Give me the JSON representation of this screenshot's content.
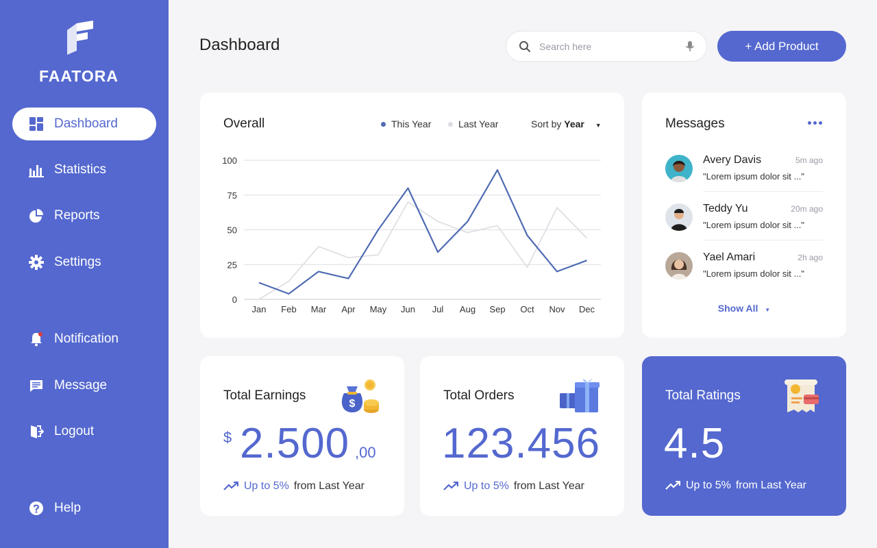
{
  "brand": {
    "name": "FAATORA"
  },
  "sidebar": {
    "items": [
      {
        "label": "Dashboard",
        "icon": "dashboard-icon",
        "active": true
      },
      {
        "label": "Statistics",
        "icon": "bar-chart-icon"
      },
      {
        "label": "Reports",
        "icon": "pie-chart-icon"
      },
      {
        "label": "Settings",
        "icon": "gear-icon"
      },
      {
        "label": "Notification",
        "icon": "bell-icon"
      },
      {
        "label": "Message",
        "icon": "chat-icon"
      },
      {
        "label": "Logout",
        "icon": "logout-icon"
      },
      {
        "label": "Help",
        "icon": "help-icon"
      }
    ]
  },
  "header": {
    "title": "Dashboard",
    "search_placeholder": "Search here",
    "add_label": "+ Add Product"
  },
  "overall": {
    "title": "Overall",
    "legend_this": "This Year",
    "legend_last": "Last Year",
    "sort_prefix": "Sort by",
    "sort_value": "Year"
  },
  "chart_data": {
    "type": "line",
    "categories": [
      "Jan",
      "Feb",
      "Mar",
      "Apr",
      "May",
      "Jun",
      "Jul",
      "Aug",
      "Sep",
      "Oct",
      "Nov",
      "Dec"
    ],
    "series": [
      {
        "name": "This Year",
        "color": "#4f6bb3",
        "values": [
          12,
          4,
          20,
          15,
          50,
          80,
          34,
          56,
          93,
          46,
          20,
          28
        ]
      },
      {
        "name": "Last Year",
        "color": "#dcdce2",
        "values": [
          0,
          13,
          38,
          30,
          32,
          70,
          56,
          48,
          53,
          23,
          66,
          44
        ]
      }
    ],
    "yticks": [
      0,
      25,
      50,
      75,
      100
    ],
    "ylim": [
      0,
      100
    ],
    "grid": true
  },
  "messages": {
    "title": "Messages",
    "items": [
      {
        "name": "Avery Davis",
        "time": "5m ago",
        "text": "\"Lorem ipsum dolor sit ...\""
      },
      {
        "name": "Teddy Yu",
        "time": "20m ago",
        "text": "\"Lorem ipsum dolor sit ...\""
      },
      {
        "name": "Yael Amari",
        "time": "2h ago",
        "text": "\"Lorem ipsum dolor sit ...\""
      }
    ],
    "show_all": "Show All"
  },
  "stats": {
    "earnings": {
      "label": "Total Earnings",
      "currency": "$",
      "value": "2.500",
      "cents": ",00",
      "trend_up": "Up to 5%",
      "trend_rest": "from Last Year"
    },
    "orders": {
      "label": "Total Orders",
      "value": "123.456",
      "trend_up": "Up to 5%",
      "trend_rest": "from Last Year"
    },
    "ratings": {
      "label": "Total Ratings",
      "value": "4.5",
      "trend_up": "Up to 5%",
      "trend_rest": "from Last Year"
    }
  },
  "colors": {
    "accent": "#5468cf",
    "background": "#f5f5f7"
  }
}
